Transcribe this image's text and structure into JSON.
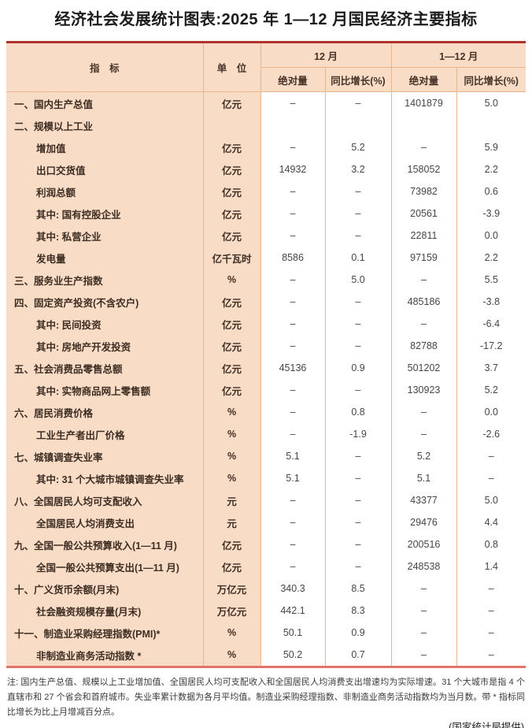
{
  "title": "经济社会发展统计图表:2025 年 1—12 月国民经济主要指标",
  "colors": {
    "table_top_rule": "#b23230",
    "table_bottom_rule": "#e2746a",
    "header_background": "#f9dcc6",
    "grid_line": "#edb48e",
    "header_text": "#463227",
    "body_text": "#3d2d22"
  },
  "table": {
    "header": {
      "indicator": "指　标",
      "unit": "单　位",
      "group_dec": "12 月",
      "group_ytd": "1—12 月",
      "abs_dec": "绝对量",
      "yoy_dec": "同比增长(%)",
      "abs_ytd": "绝对量",
      "yoy_ytd": "同比增长(%)"
    },
    "rows": [
      {
        "label": "一、国内生产总值",
        "indent": 0,
        "unit": "亿元",
        "m_abs": "–",
        "m_yoy": "–",
        "y_abs": "1401879",
        "y_yoy": "5.0"
      },
      {
        "label": "二、规模以上工业",
        "indent": 0,
        "unit": "",
        "m_abs": "",
        "m_yoy": "",
        "y_abs": "",
        "y_yoy": ""
      },
      {
        "label": "增加值",
        "indent": 1,
        "unit": "亿元",
        "m_abs": "–",
        "m_yoy": "5.2",
        "y_abs": "–",
        "y_yoy": "5.9"
      },
      {
        "label": "出口交货值",
        "indent": 1,
        "unit": "亿元",
        "m_abs": "14932",
        "m_yoy": "3.2",
        "y_abs": "158052",
        "y_yoy": "2.2"
      },
      {
        "label": "利润总额",
        "indent": 1,
        "unit": "亿元",
        "m_abs": "–",
        "m_yoy": "–",
        "y_abs": "73982",
        "y_yoy": "0.6"
      },
      {
        "label": "其中: 国有控股企业",
        "indent": 1,
        "unit": "亿元",
        "m_abs": "–",
        "m_yoy": "–",
        "y_abs": "20561",
        "y_yoy": "-3.9"
      },
      {
        "label": "其中: 私营企业",
        "indent": 1,
        "unit": "亿元",
        "m_abs": "–",
        "m_yoy": "–",
        "y_abs": "22811",
        "y_yoy": "0.0"
      },
      {
        "label": "发电量",
        "indent": 1,
        "unit": "亿千瓦时",
        "m_abs": "8586",
        "m_yoy": "0.1",
        "y_abs": "97159",
        "y_yoy": "2.2"
      },
      {
        "label": "三、服务业生产指数",
        "indent": 0,
        "unit": "%",
        "m_abs": "–",
        "m_yoy": "5.0",
        "y_abs": "–",
        "y_yoy": "5.5"
      },
      {
        "label": "四、固定资产投资(不含农户)",
        "indent": 0,
        "unit": "亿元",
        "m_abs": "–",
        "m_yoy": "–",
        "y_abs": "485186",
        "y_yoy": "-3.8"
      },
      {
        "label": "其中: 民间投资",
        "indent": 1,
        "unit": "亿元",
        "m_abs": "–",
        "m_yoy": "–",
        "y_abs": "–",
        "y_yoy": "-6.4"
      },
      {
        "label": "其中: 房地产开发投资",
        "indent": 1,
        "unit": "亿元",
        "m_abs": "–",
        "m_yoy": "–",
        "y_abs": "82788",
        "y_yoy": "-17.2"
      },
      {
        "label": "五、社会消费品零售总额",
        "indent": 0,
        "unit": "亿元",
        "m_abs": "45136",
        "m_yoy": "0.9",
        "y_abs": "501202",
        "y_yoy": "3.7"
      },
      {
        "label": "其中: 实物商品网上零售额",
        "indent": 1,
        "unit": "亿元",
        "m_abs": "–",
        "m_yoy": "–",
        "y_abs": "130923",
        "y_yoy": "5.2"
      },
      {
        "label": "六、居民消费价格",
        "indent": 0,
        "unit": "%",
        "m_abs": "–",
        "m_yoy": "0.8",
        "y_abs": "–",
        "y_yoy": "0.0"
      },
      {
        "label": "工业生产者出厂价格",
        "indent": 1,
        "unit": "%",
        "m_abs": "–",
        "m_yoy": "-1.9",
        "y_abs": "–",
        "y_yoy": "-2.6"
      },
      {
        "label": "七、城镇调查失业率",
        "indent": 0,
        "unit": "%",
        "m_abs": "5.1",
        "m_yoy": "–",
        "y_abs": "5.2",
        "y_yoy": "–"
      },
      {
        "label": "其中: 31 个大城市城镇调查失业率",
        "indent": 1,
        "unit": "%",
        "m_abs": "5.1",
        "m_yoy": "–",
        "y_abs": "5.1",
        "y_yoy": "–"
      },
      {
        "label": "八、全国居民人均可支配收入",
        "indent": 0,
        "unit": "元",
        "m_abs": "–",
        "m_yoy": "–",
        "y_abs": "43377",
        "y_yoy": "5.0"
      },
      {
        "label": "全国居民人均消费支出",
        "indent": 1,
        "unit": "元",
        "m_abs": "–",
        "m_yoy": "–",
        "y_abs": "29476",
        "y_yoy": "4.4"
      },
      {
        "label": "九、全国一般公共预算收入(1—11 月)",
        "indent": 0,
        "unit": "亿元",
        "m_abs": "–",
        "m_yoy": "–",
        "y_abs": "200516",
        "y_yoy": "0.8"
      },
      {
        "label": "全国一般公共预算支出(1—11 月)",
        "indent": 1,
        "unit": "亿元",
        "m_abs": "–",
        "m_yoy": "–",
        "y_abs": "248538",
        "y_yoy": "1.4"
      },
      {
        "label": "十、广义货币余额(月末)",
        "indent": 0,
        "unit": "万亿元",
        "m_abs": "340.3",
        "m_yoy": "8.5",
        "y_abs": "–",
        "y_yoy": "–"
      },
      {
        "label": "社会融资规模存量(月末)",
        "indent": 1,
        "unit": "万亿元",
        "m_abs": "442.1",
        "m_yoy": "8.3",
        "y_abs": "–",
        "y_yoy": "–"
      },
      {
        "label": "十一、制造业采购经理指数(PMI)*",
        "indent": 0,
        "unit": "%",
        "m_abs": "50.1",
        "m_yoy": "0.9",
        "y_abs": "–",
        "y_yoy": "–"
      },
      {
        "label": "非制造业商务活动指数 *",
        "indent": 1,
        "unit": "%",
        "m_abs": "50.2",
        "m_yoy": "0.7",
        "y_abs": "–",
        "y_yoy": "–"
      }
    ]
  },
  "notes": "注: 国内生产总值、规模以上工业增加值、全国居民人均可支配收入和全国居民人均消费支出增速均为实际增速。31 个大城市是指 4 个直辖市和 27 个省会和首府城市。失业率累计数据为各月平均值。制造业采购经理指数、非制造业商务活动指数均为当月数。带 * 指标同比增长为比上月增减百分点。",
  "source": "(国家统计局提供)"
}
